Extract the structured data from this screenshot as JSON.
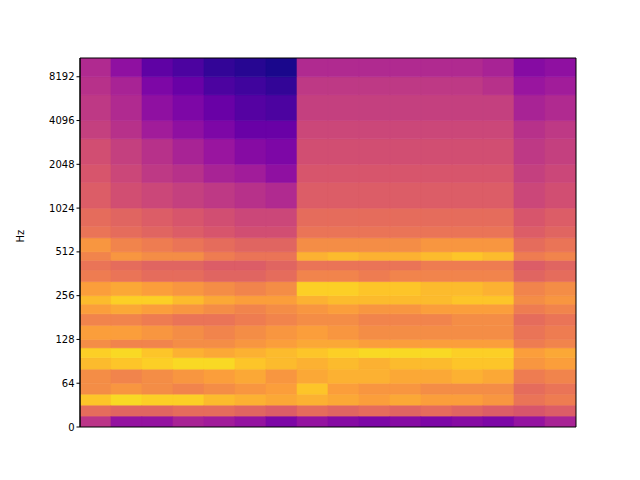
{
  "chart_data": {
    "type": "spectrogram",
    "ylabel": "Hz",
    "log": "y",
    "tick_labels": "y",
    "ylim": [
      0,
      11025
    ],
    "yticks": [
      0,
      64,
      128,
      256,
      512,
      1024,
      2048,
      4096,
      8192
    ],
    "zlim": [
      -80,
      0
    ],
    "freq_bins": [
      0,
      16,
      32,
      48,
      64,
      80,
      96,
      112,
      128,
      160,
      192,
      224,
      256,
      320,
      384,
      448,
      512,
      640,
      768,
      1024,
      1536,
      2048,
      3072,
      4096,
      6144,
      8192,
      11025
    ],
    "cells": [
      [
        -45,
        -30,
        -10,
        -22,
        -22,
        -12,
        -8,
        -22,
        -18,
        -24,
        -18,
        -12,
        -18,
        -26,
        -28,
        -24,
        -20,
        -28,
        -30,
        -34,
        -36,
        -38,
        -42,
        -44,
        -46,
        -48
      ],
      [
        -55,
        -32,
        -6,
        -20,
        -24,
        -10,
        -6,
        -24,
        -18,
        -24,
        -16,
        -8,
        -16,
        -28,
        -30,
        -20,
        -24,
        -30,
        -32,
        -38,
        -40,
        -42,
        -46,
        -48,
        -50,
        -56
      ],
      [
        -55,
        -32,
        -8,
        -22,
        -22,
        -8,
        -10,
        -24,
        -20,
        -26,
        -18,
        -8,
        -18,
        -30,
        -32,
        -22,
        -26,
        -32,
        -34,
        -40,
        -44,
        -46,
        -52,
        -56,
        -60,
        -66
      ],
      [
        -50,
        -30,
        -8,
        -24,
        -20,
        -6,
        -14,
        -22,
        -22,
        -28,
        -20,
        -12,
        -20,
        -30,
        -32,
        -22,
        -28,
        -34,
        -36,
        -42,
        -46,
        -50,
        -56,
        -60,
        -64,
        -70
      ],
      [
        -52,
        -30,
        -12,
        -22,
        -18,
        -6,
        -16,
        -22,
        -24,
        -28,
        -22,
        -16,
        -22,
        -32,
        -34,
        -26,
        -30,
        -36,
        -38,
        -44,
        -50,
        -54,
        -60,
        -64,
        -70,
        -74
      ],
      [
        -55,
        -32,
        -14,
        -20,
        -16,
        -10,
        -14,
        -20,
        -22,
        -26,
        -24,
        -18,
        -24,
        -32,
        -34,
        -28,
        -32,
        -38,
        -40,
        -46,
        -52,
        -58,
        -64,
        -68,
        -72,
        -76
      ],
      [
        -60,
        -34,
        -16,
        -18,
        -20,
        -12,
        -12,
        -18,
        -20,
        -24,
        -22,
        -18,
        -22,
        -30,
        -32,
        -28,
        -32,
        -38,
        -40,
        -48,
        -56,
        -60,
        -64,
        -70,
        -74,
        -78
      ],
      [
        -55,
        -30,
        -14,
        -10,
        -16,
        -14,
        -10,
        -16,
        -18,
        -22,
        -20,
        -14,
        -8,
        -24,
        -28,
        -14,
        -22,
        -28,
        -30,
        -34,
        -36,
        -38,
        -40,
        -42,
        -44,
        -48
      ],
      [
        -58,
        -32,
        -16,
        -18,
        -14,
        -12,
        -8,
        -16,
        -20,
        -22,
        -18,
        -12,
        -8,
        -24,
        -28,
        -12,
        -22,
        -28,
        -30,
        -34,
        -36,
        -38,
        -40,
        -42,
        -44,
        -48
      ],
      [
        -60,
        -30,
        -18,
        -20,
        -14,
        -14,
        -6,
        -18,
        -22,
        -24,
        -20,
        -12,
        -10,
        -26,
        -28,
        -14,
        -22,
        -28,
        -30,
        -34,
        -36,
        -38,
        -40,
        -42,
        -44,
        -48
      ],
      [
        -58,
        -32,
        -16,
        -20,
        -16,
        -12,
        -6,
        -18,
        -22,
        -24,
        -20,
        -12,
        -10,
        -24,
        -28,
        -14,
        -22,
        -28,
        -30,
        -34,
        -36,
        -38,
        -40,
        -42,
        -44,
        -48
      ],
      [
        -60,
        -30,
        -18,
        -22,
        -16,
        -12,
        -6,
        -18,
        -22,
        -24,
        -18,
        -12,
        -12,
        -24,
        -26,
        -12,
        -20,
        -28,
        -30,
        -34,
        -36,
        -38,
        -40,
        -42,
        -44,
        -48
      ],
      [
        -58,
        -32,
        -18,
        -22,
        -14,
        -10,
        -8,
        -18,
        -22,
        -22,
        -18,
        -10,
        -12,
        -24,
        -26,
        -10,
        -20,
        -28,
        -30,
        -34,
        -36,
        -38,
        -40,
        -42,
        -44,
        -48
      ],
      [
        -60,
        -34,
        -20,
        -22,
        -16,
        -10,
        -8,
        -18,
        -22,
        -22,
        -18,
        -10,
        -14,
        -24,
        -26,
        -12,
        -20,
        -28,
        -30,
        -34,
        -36,
        -38,
        -40,
        -42,
        -46,
        -50
      ],
      [
        -55,
        -36,
        -28,
        -30,
        -26,
        -20,
        -18,
        -26,
        -28,
        -30,
        -26,
        -22,
        -24,
        -32,
        -34,
        -26,
        -30,
        -34,
        -36,
        -40,
        -42,
        -44,
        -46,
        -50,
        -54,
        -58
      ],
      [
        -50,
        -34,
        -26,
        -28,
        -24,
        -18,
        -16,
        -24,
        -26,
        -28,
        -24,
        -20,
        -22,
        -30,
        -32,
        -24,
        -28,
        -32,
        -34,
        -38,
        -40,
        -42,
        -44,
        -48,
        -52,
        -56
      ]
    ]
  }
}
